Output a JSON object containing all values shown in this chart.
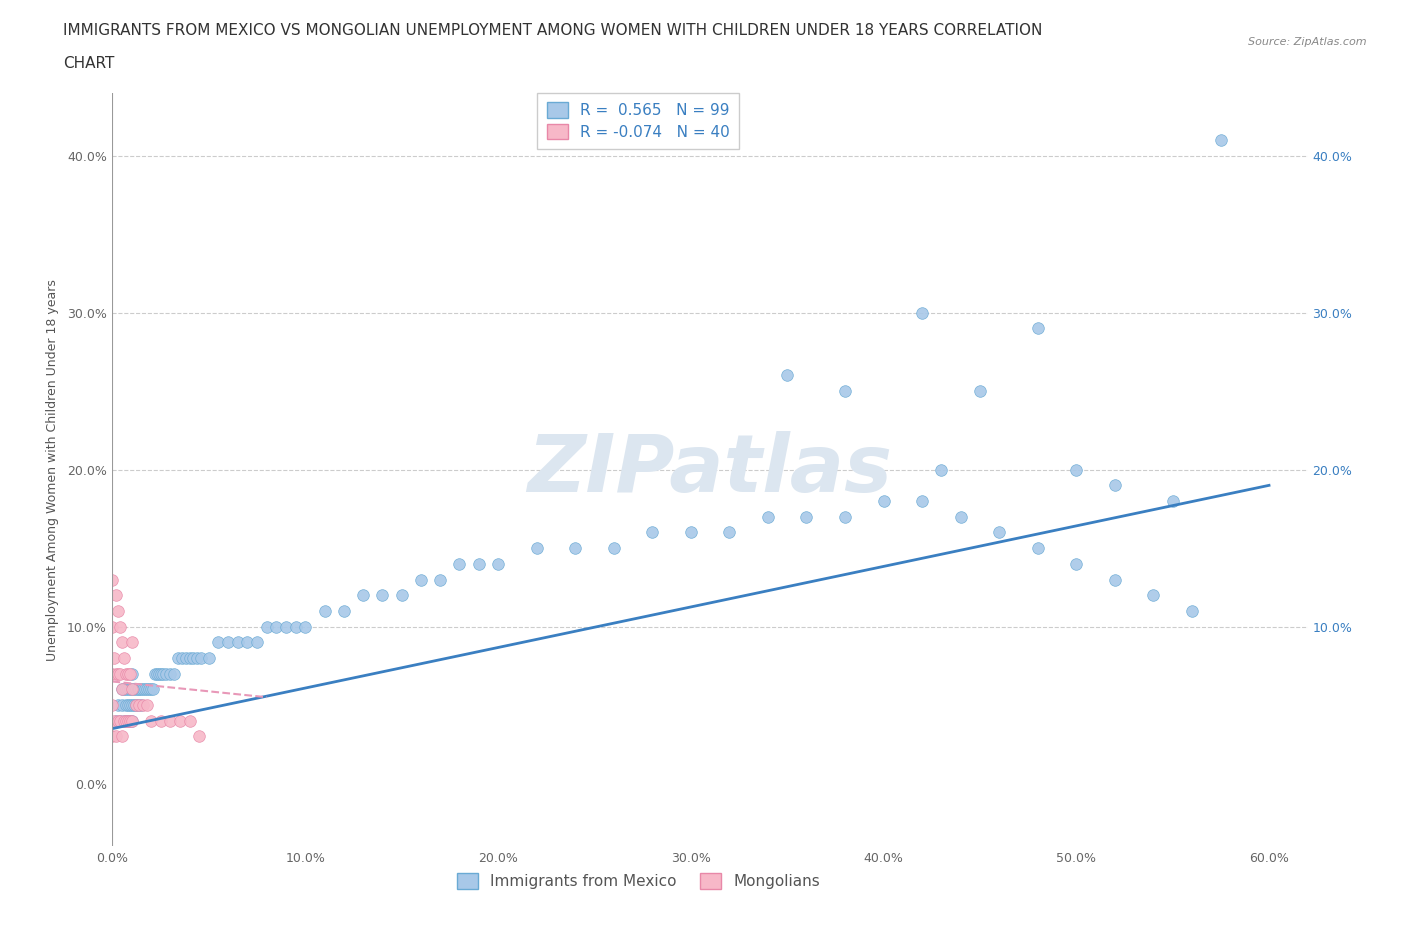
{
  "title_line1": "IMMIGRANTS FROM MEXICO VS MONGOLIAN UNEMPLOYMENT AMONG WOMEN WITH CHILDREN UNDER 18 YEARS CORRELATION",
  "title_line2": "CHART",
  "source_text": "Source: ZipAtlas.com",
  "ylabel": "Unemployment Among Women with Children Under 18 years",
  "xlim": [
    0.0,
    0.62
  ],
  "ylim": [
    -0.04,
    0.44
  ],
  "xticklabels": [
    "0.0%",
    "10.0%",
    "20.0%",
    "30.0%",
    "40.0%",
    "50.0%",
    "60.0%"
  ],
  "xtick_vals": [
    0.0,
    0.1,
    0.2,
    0.3,
    0.4,
    0.5,
    0.6
  ],
  "ytick_vals": [
    0.0,
    0.1,
    0.2,
    0.3,
    0.4
  ],
  "yticklabels_left": [
    "0.0%",
    "10.0%",
    "20.0%",
    "30.0%",
    "40.0%"
  ],
  "ytick_right_vals": [
    0.1,
    0.2,
    0.3,
    0.4
  ],
  "yticklabels_right": [
    "10.0%",
    "20.0%",
    "30.0%",
    "40.0%"
  ],
  "r_blue": 0.565,
  "n_blue": 99,
  "r_pink": -0.074,
  "n_pink": 40,
  "blue_color": "#a8c8e8",
  "blue_edge": "#6aaad4",
  "pink_color": "#f7b8c8",
  "pink_edge": "#e888a8",
  "trendline_blue_color": "#3a7fc1",
  "trendline_pink_color": "#e898b8",
  "grid_color": "#cccccc",
  "watermark_color": "#dce6f0",
  "background_color": "#ffffff",
  "legend_label_blue": "Immigrants from Mexico",
  "legend_label_pink": "Mongolians",
  "title_fontsize": 11,
  "axis_fontsize": 9,
  "tick_fontsize": 9,
  "legend_fontsize": 11,
  "blue_x": [
    0.002,
    0.003,
    0.004,
    0.005,
    0.005,
    0.006,
    0.006,
    0.007,
    0.007,
    0.007,
    0.008,
    0.008,
    0.008,
    0.009,
    0.009,
    0.009,
    0.01,
    0.01,
    0.01,
    0.01,
    0.011,
    0.011,
    0.012,
    0.012,
    0.013,
    0.013,
    0.014,
    0.015,
    0.015,
    0.016,
    0.017,
    0.018,
    0.019,
    0.02,
    0.021,
    0.022,
    0.023,
    0.024,
    0.025,
    0.026,
    0.028,
    0.03,
    0.032,
    0.034,
    0.036,
    0.038,
    0.04,
    0.042,
    0.044,
    0.046,
    0.05,
    0.055,
    0.06,
    0.065,
    0.07,
    0.075,
    0.08,
    0.085,
    0.09,
    0.095,
    0.1,
    0.11,
    0.12,
    0.13,
    0.14,
    0.15,
    0.16,
    0.17,
    0.18,
    0.19,
    0.2,
    0.22,
    0.24,
    0.26,
    0.28,
    0.3,
    0.32,
    0.34,
    0.36,
    0.38,
    0.4,
    0.42,
    0.44,
    0.46,
    0.48,
    0.5,
    0.52,
    0.54,
    0.56,
    0.43,
    0.35,
    0.38,
    0.42,
    0.45,
    0.48,
    0.5,
    0.52,
    0.55,
    0.575
  ],
  "blue_y": [
    0.04,
    0.05,
    0.04,
    0.05,
    0.06,
    0.04,
    0.06,
    0.04,
    0.05,
    0.06,
    0.04,
    0.05,
    0.06,
    0.04,
    0.05,
    0.06,
    0.04,
    0.05,
    0.06,
    0.07,
    0.05,
    0.06,
    0.05,
    0.06,
    0.05,
    0.06,
    0.06,
    0.05,
    0.06,
    0.06,
    0.06,
    0.06,
    0.06,
    0.06,
    0.06,
    0.07,
    0.07,
    0.07,
    0.07,
    0.07,
    0.07,
    0.07,
    0.07,
    0.08,
    0.08,
    0.08,
    0.08,
    0.08,
    0.08,
    0.08,
    0.08,
    0.09,
    0.09,
    0.09,
    0.09,
    0.09,
    0.1,
    0.1,
    0.1,
    0.1,
    0.1,
    0.11,
    0.11,
    0.12,
    0.12,
    0.12,
    0.13,
    0.13,
    0.14,
    0.14,
    0.14,
    0.15,
    0.15,
    0.15,
    0.16,
    0.16,
    0.16,
    0.17,
    0.17,
    0.17,
    0.18,
    0.18,
    0.17,
    0.16,
    0.15,
    0.14,
    0.13,
    0.12,
    0.11,
    0.2,
    0.26,
    0.25,
    0.3,
    0.25,
    0.29,
    0.2,
    0.19,
    0.18,
    0.41
  ],
  "pink_x": [
    0.0,
    0.0,
    0.0,
    0.0,
    0.0,
    0.001,
    0.001,
    0.002,
    0.002,
    0.002,
    0.003,
    0.003,
    0.003,
    0.004,
    0.004,
    0.004,
    0.005,
    0.005,
    0.005,
    0.006,
    0.006,
    0.007,
    0.007,
    0.008,
    0.008,
    0.009,
    0.009,
    0.01,
    0.01,
    0.01,
    0.012,
    0.014,
    0.016,
    0.018,
    0.02,
    0.025,
    0.03,
    0.035,
    0.04,
    0.045
  ],
  "pink_y": [
    0.03,
    0.05,
    0.07,
    0.1,
    0.13,
    0.04,
    0.08,
    0.03,
    0.07,
    0.12,
    0.04,
    0.07,
    0.11,
    0.04,
    0.07,
    0.1,
    0.03,
    0.06,
    0.09,
    0.04,
    0.08,
    0.04,
    0.07,
    0.04,
    0.07,
    0.04,
    0.07,
    0.04,
    0.06,
    0.09,
    0.05,
    0.05,
    0.05,
    0.05,
    0.04,
    0.04,
    0.04,
    0.04,
    0.04,
    0.03
  ],
  "trend_blue_x0": 0.0,
  "trend_blue_x1": 0.6,
  "trend_blue_y0": 0.035,
  "trend_blue_y1": 0.19,
  "trend_pink_x0": 0.0,
  "trend_pink_x1": 0.08,
  "trend_pink_y0": 0.065,
  "trend_pink_y1": 0.055
}
